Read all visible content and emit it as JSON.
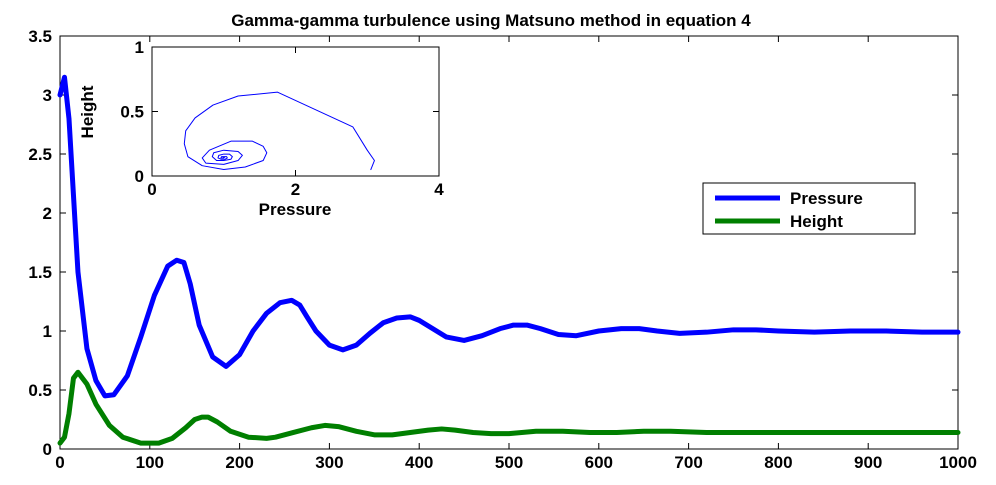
{
  "chart_data": [
    {
      "type": "line",
      "title": "Gamma-gamma turbulence using Matsuno method in equation 4",
      "xlabel": "",
      "ylabel": "",
      "xlim": [
        0,
        1000
      ],
      "ylim": [
        0,
        3.5
      ],
      "xticks": [
        "0",
        "100",
        "200",
        "300",
        "400",
        "500",
        "600",
        "700",
        "800",
        "900",
        "1000"
      ],
      "yticks": [
        "0",
        "0.5",
        "1",
        "1.5",
        "2",
        "2.5",
        "3",
        "3.5"
      ],
      "grid": false,
      "legend_position": "right",
      "series": [
        {
          "name": "Pressure",
          "color": "#0000ff",
          "x": [
            0,
            5,
            10,
            20,
            30,
            40,
            50,
            60,
            75,
            90,
            105,
            120,
            130,
            138,
            145,
            155,
            170,
            185,
            200,
            215,
            230,
            245,
            258,
            267,
            275,
            285,
            300,
            315,
            330,
            345,
            360,
            375,
            390,
            400,
            415,
            430,
            450,
            470,
            490,
            505,
            520,
            535,
            555,
            575,
            600,
            625,
            645,
            665,
            690,
            720,
            750,
            775,
            800,
            840,
            880,
            920,
            960,
            1000
          ],
          "y": [
            3.0,
            3.15,
            2.8,
            1.5,
            0.85,
            0.58,
            0.45,
            0.46,
            0.62,
            0.95,
            1.3,
            1.55,
            1.6,
            1.58,
            1.4,
            1.05,
            0.78,
            0.7,
            0.8,
            1.0,
            1.15,
            1.24,
            1.26,
            1.22,
            1.12,
            1.0,
            0.88,
            0.84,
            0.88,
            0.98,
            1.07,
            1.11,
            1.12,
            1.09,
            1.02,
            0.95,
            0.92,
            0.96,
            1.02,
            1.05,
            1.05,
            1.02,
            0.97,
            0.96,
            1.0,
            1.02,
            1.02,
            1.0,
            0.98,
            0.99,
            1.01,
            1.01,
            1.0,
            0.99,
            1.0,
            1.0,
            0.99,
            0.99
          ]
        },
        {
          "name": "Height",
          "color": "#007f00",
          "x": [
            0,
            5,
            10,
            15,
            20,
            30,
            40,
            55,
            70,
            90,
            110,
            125,
            140,
            150,
            158,
            165,
            175,
            190,
            210,
            230,
            240,
            260,
            280,
            295,
            310,
            330,
            350,
            370,
            390,
            410,
            425,
            440,
            460,
            480,
            500,
            530,
            560,
            590,
            620,
            650,
            680,
            720,
            760,
            800,
            850,
            900,
            950,
            1000
          ],
          "y": [
            0.05,
            0.1,
            0.3,
            0.6,
            0.65,
            0.55,
            0.38,
            0.2,
            0.1,
            0.05,
            0.05,
            0.09,
            0.18,
            0.25,
            0.27,
            0.27,
            0.23,
            0.15,
            0.1,
            0.09,
            0.1,
            0.14,
            0.18,
            0.2,
            0.19,
            0.15,
            0.12,
            0.12,
            0.14,
            0.16,
            0.17,
            0.16,
            0.14,
            0.13,
            0.13,
            0.15,
            0.15,
            0.14,
            0.14,
            0.15,
            0.15,
            0.14,
            0.14,
            0.14,
            0.14,
            0.14,
            0.14,
            0.14
          ]
        }
      ]
    },
    {
      "type": "line",
      "title": "",
      "xlabel": "Pressure",
      "ylabel": "Height",
      "xlim": [
        0,
        4
      ],
      "ylim": [
        0,
        1
      ],
      "xticks": [
        "0",
        "2",
        "4"
      ],
      "yticks": [
        "0",
        "0.5",
        "1"
      ],
      "series": [
        {
          "color": "#0000ff",
          "x": [
            3.05,
            3.1,
            3.0,
            2.8,
            1.75,
            1.2,
            0.85,
            0.6,
            0.47,
            0.45,
            0.5,
            0.7,
            1.0,
            1.3,
            1.55,
            1.6,
            1.55,
            1.4,
            1.1,
            0.8,
            0.7,
            0.75,
            1.0,
            1.2,
            1.26,
            1.2,
            1.0,
            0.86,
            0.84,
            0.9,
            1.0,
            1.1,
            1.12,
            1.08,
            1.0,
            0.93,
            0.92,
            0.96,
            1.02,
            1.05,
            1.04,
            1.0,
            0.97,
            0.96,
            0.98,
            1.0,
            1.02,
            1.01,
            0.99,
            0.99,
            1.0
          ],
          "y": [
            0.05,
            0.12,
            0.2,
            0.38,
            0.65,
            0.62,
            0.55,
            0.45,
            0.35,
            0.25,
            0.15,
            0.08,
            0.05,
            0.07,
            0.12,
            0.18,
            0.23,
            0.27,
            0.27,
            0.2,
            0.14,
            0.1,
            0.09,
            0.12,
            0.16,
            0.19,
            0.2,
            0.18,
            0.15,
            0.12,
            0.12,
            0.13,
            0.15,
            0.17,
            0.17,
            0.16,
            0.14,
            0.13,
            0.13,
            0.14,
            0.15,
            0.15,
            0.15,
            0.14,
            0.14,
            0.14,
            0.15,
            0.15,
            0.14,
            0.14,
            0.14
          ]
        }
      ]
    }
  ]
}
